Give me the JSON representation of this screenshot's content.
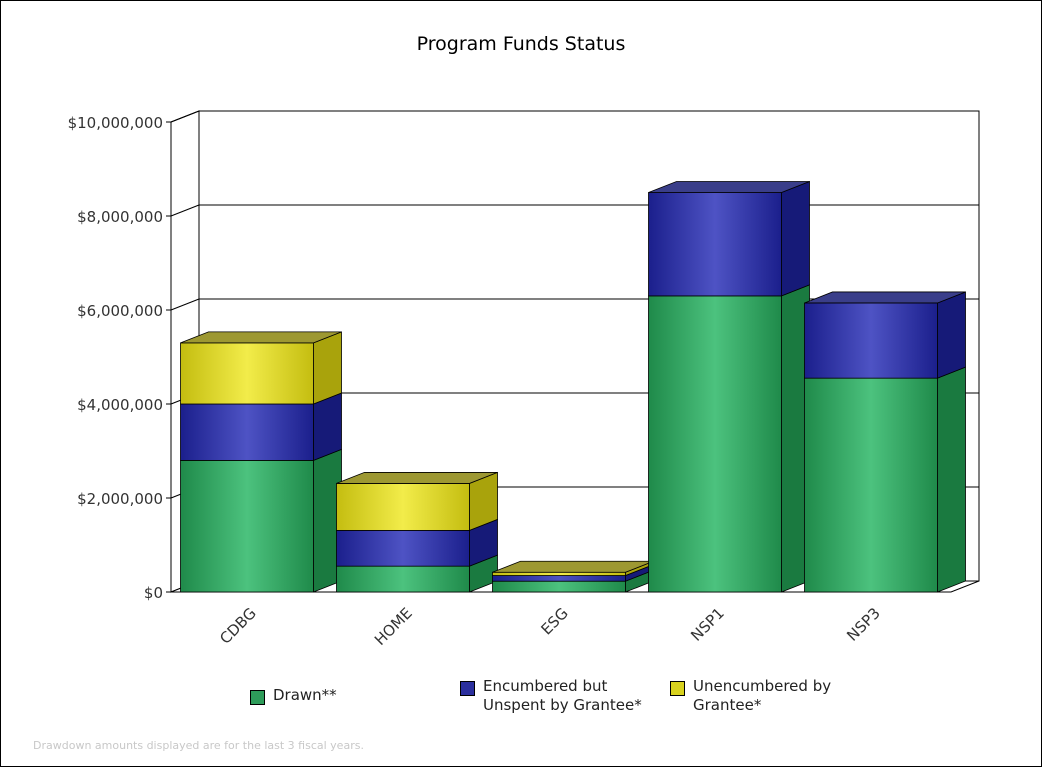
{
  "chart_data": {
    "type": "bar",
    "stacked": true,
    "title": "Program Funds Status",
    "categories": [
      "CDBG",
      "HOME",
      "ESG",
      "NSP1",
      "NSP3"
    ],
    "series": [
      {
        "name": "Drawn**",
        "color": "#2e9c5a",
        "values": [
          2800000,
          550000,
          230000,
          6300000,
          4550000
        ]
      },
      {
        "name": "Encumbered but Unspent by Grantee*",
        "color": "#2b2f9e",
        "values": [
          1200000,
          760000,
          120000,
          2200000,
          1600000
        ]
      },
      {
        "name": "Unencumbered by Grantee*",
        "color": "#d8d21e",
        "values": [
          1300000,
          1000000,
          70000,
          0,
          0
        ]
      }
    ],
    "y_ticks": [
      "$0",
      "$2,000,000",
      "$4,000,000",
      "$6,000,000",
      "$8,000,000",
      "$10,000,000"
    ],
    "ylim": [
      0,
      10000000
    ],
    "grid": true,
    "legend_position": "bottom"
  },
  "legend": [
    {
      "lines": [
        "Drawn**"
      ]
    },
    {
      "lines": [
        "Encumbered but",
        "Unspent by Grantee*"
      ]
    },
    {
      "lines": [
        "Unencumbered by",
        "Grantee*"
      ]
    }
  ],
  "footnote": "Drawdown amounts displayed are for the last 3 fiscal years."
}
